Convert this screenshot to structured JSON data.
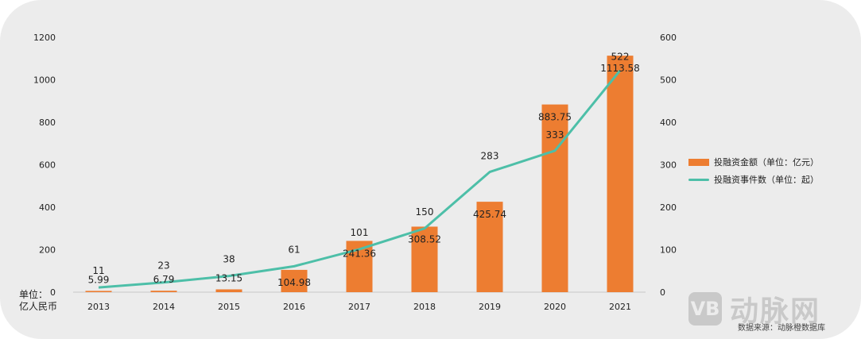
{
  "chart_data": {
    "type": "bar+line",
    "categories": [
      "2013",
      "2014",
      "2015",
      "2016",
      "2017",
      "2018",
      "2019",
      "2020",
      "2021"
    ],
    "series": [
      {
        "name": "投融资金额（单位：亿元）",
        "type": "bar",
        "axis": "left",
        "values": [
          5.99,
          6.79,
          13.15,
          104.98,
          241.36,
          308.52,
          425.74,
          883.75,
          1113.58
        ],
        "labels": [
          "5.99",
          "6.79",
          "13.15",
          "104.98",
          "241.36",
          "308.52",
          "425.74",
          "883.75",
          "1113.58"
        ],
        "color": "#ed7d31"
      },
      {
        "name": "投融资事件数（单位：起）",
        "type": "line",
        "axis": "right",
        "values": [
          11,
          23,
          38,
          61,
          101,
          150,
          283,
          333,
          522
        ],
        "labels": [
          "11",
          "23",
          "38",
          "61",
          "101",
          "150",
          "283",
          "333",
          "522"
        ],
        "color": "#4dbfa8"
      }
    ],
    "left_axis": {
      "min": 0,
      "max": 1200,
      "ticks": [
        "0",
        "200",
        "400",
        "600",
        "800",
        "1000",
        "1200"
      ]
    },
    "right_axis": {
      "min": 0,
      "max": 600,
      "ticks": [
        "0",
        "100",
        "200",
        "300",
        "400",
        "500",
        "600"
      ]
    },
    "left_unit_label": [
      "单位：",
      "亿人民币"
    ],
    "legend_position": "right",
    "grid": false
  },
  "watermark": {
    "badge": "VB",
    "brand": "动脉网"
  },
  "source": "数据来源：动脉橙数据库"
}
